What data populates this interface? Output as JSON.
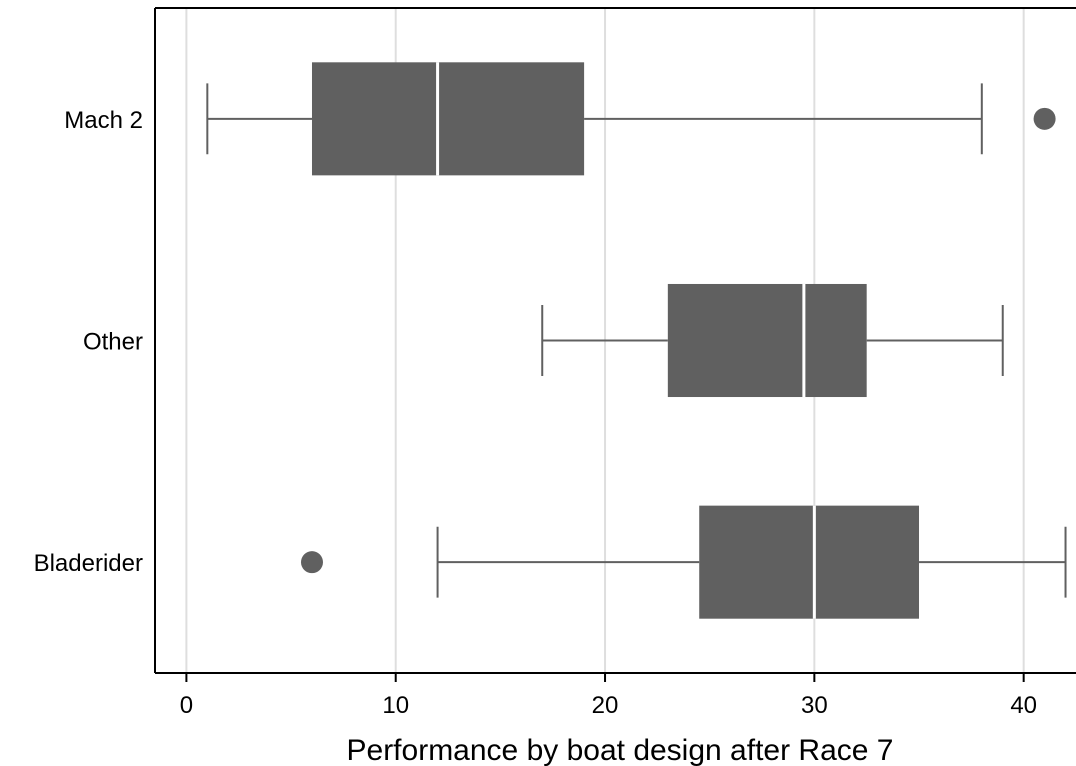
{
  "chart_data": {
    "type": "boxplot",
    "orientation": "horizontal",
    "title": "",
    "xlabel": "Performance by boat design after Race 7",
    "ylabel": "",
    "xlim": [
      -1.5,
      42.5
    ],
    "xticks": [
      0,
      10,
      20,
      30,
      40
    ],
    "grid": "vertical",
    "legend": "none",
    "categories": [
      "Mach 2",
      "Other",
      "Bladerider"
    ],
    "boxes": [
      {
        "category": "Mach 2",
        "whisker_low": 1,
        "q1": 6,
        "median": 12,
        "q3": 19,
        "whisker_high": 38,
        "outliers": [
          41
        ]
      },
      {
        "category": "Other",
        "whisker_low": 17,
        "q1": 23,
        "median": 29.5,
        "q3": 32.5,
        "whisker_high": 39,
        "outliers": []
      },
      {
        "category": "Bladerider",
        "whisker_low": 12,
        "q1": 24.5,
        "median": 30,
        "q3": 35,
        "whisker_high": 42,
        "outliers": [
          6
        ]
      }
    ],
    "colors": {
      "box": "#606060",
      "median": "#ffffff",
      "grid": "#dedede",
      "axis": "#000000"
    }
  }
}
